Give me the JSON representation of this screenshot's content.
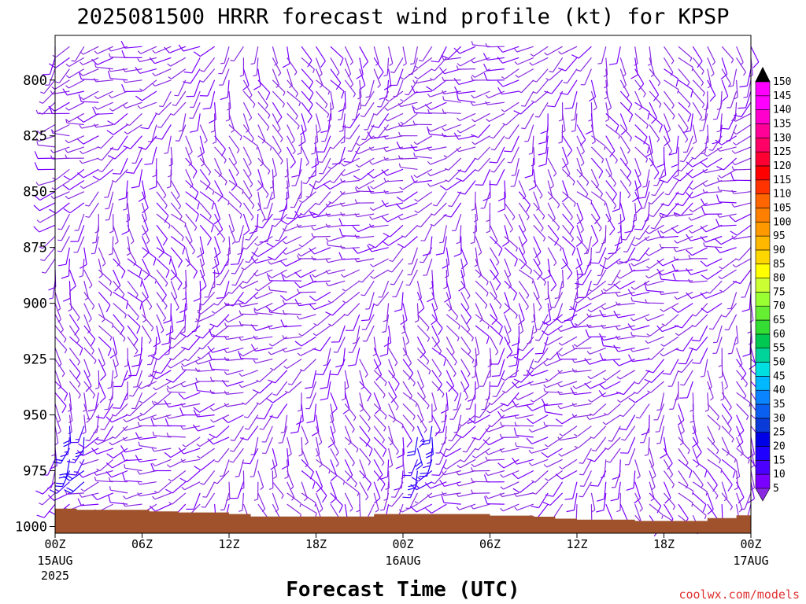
{
  "chart_data": {
    "type": "wind-barb-profile",
    "title": "2025081500 HRRR forecast wind profile (kt) for KPSP",
    "xlabel": "Forecast Time (UTC)",
    "watermark": "coolwx.com/models",
    "x_ticks": [
      {
        "hour": 0,
        "label": "00Z",
        "sub": [
          "15AUG",
          "2025"
        ]
      },
      {
        "hour": 6,
        "label": "06Z",
        "sub": []
      },
      {
        "hour": 12,
        "label": "12Z",
        "sub": []
      },
      {
        "hour": 18,
        "label": "18Z",
        "sub": []
      },
      {
        "hour": 24,
        "label": "00Z",
        "sub": [
          "16AUG"
        ]
      },
      {
        "hour": 30,
        "label": "06Z",
        "sub": []
      },
      {
        "hour": 36,
        "label": "12Z",
        "sub": []
      },
      {
        "hour": 42,
        "label": "18Z",
        "sub": []
      },
      {
        "hour": 48,
        "label": "00Z",
        "sub": [
          "17AUG"
        ]
      }
    ],
    "xlim": [
      0,
      48
    ],
    "y_axis": "pressure (hPa), reversed",
    "y_ticks": [
      800,
      825,
      850,
      875,
      900,
      925,
      950,
      975,
      1000
    ],
    "ylim": [
      1003,
      780
    ],
    "levels_hpa": [
      785,
      790,
      795,
      800,
      805,
      810,
      815,
      820,
      825,
      830,
      835,
      840,
      845,
      850,
      855,
      860,
      865,
      870,
      875,
      880,
      885,
      890,
      895,
      900,
      905,
      910,
      915,
      920,
      925,
      930,
      935,
      940,
      945,
      950,
      955,
      960,
      965,
      970,
      975,
      980,
      985,
      990,
      995
    ],
    "speed_colorbar": {
      "unit": "kt",
      "levels": [
        5,
        10,
        15,
        20,
        25,
        30,
        35,
        40,
        45,
        50,
        55,
        60,
        65,
        70,
        75,
        80,
        85,
        90,
        95,
        100,
        105,
        110,
        115,
        120,
        125,
        130,
        135,
        140,
        145,
        150
      ],
      "colors": [
        "#8a2be2",
        "#7a00ff",
        "#4b00ff",
        "#1f00ff",
        "#0000e6",
        "#0a3ad8",
        "#0a5ef0",
        "#0a84ff",
        "#00b8ff",
        "#00e0e0",
        "#00d49a",
        "#00c850",
        "#33dd33",
        "#66ee33",
        "#99ff33",
        "#ccff33",
        "#ffff00",
        "#ffd700",
        "#ffb800",
        "#ff9900",
        "#ff8000",
        "#ff6600",
        "#ff3300",
        "#ff0000",
        "#ff0033",
        "#ff0066",
        "#ff0099",
        "#ff00cc",
        "#ff00ff",
        "#ff00ff"
      ]
    },
    "surface_pressure_hpa": [
      {
        "hour": 0,
        "p": 992.0
      },
      {
        "hour": 1.5,
        "p": 992.5
      },
      {
        "hour": 5,
        "p": 992.5
      },
      {
        "hour": 6.5,
        "p": 993.2
      },
      {
        "hour": 8.5,
        "p": 993.7
      },
      {
        "hour": 12,
        "p": 994.4
      },
      {
        "hour": 13.5,
        "p": 995.5
      },
      {
        "hour": 21,
        "p": 995.5
      },
      {
        "hour": 22,
        "p": 994.4
      },
      {
        "hour": 30,
        "p": 995.1
      },
      {
        "hour": 33,
        "p": 995.6
      },
      {
        "hour": 34.5,
        "p": 996.5
      },
      {
        "hour": 36,
        "p": 996.9
      },
      {
        "hour": 40,
        "p": 997.5
      },
      {
        "hour": 45,
        "p": 996.2
      },
      {
        "hour": 47,
        "p": 995.0
      },
      {
        "hour": 48,
        "p": 994.4
      }
    ],
    "wind_field": "hourly barbs at every level; light winds mostly 5-15 kt (purple), stronger 15-25 kt (blue) near 955-980 hPa around 01Z-02Z and 25Z-26Z"
  }
}
